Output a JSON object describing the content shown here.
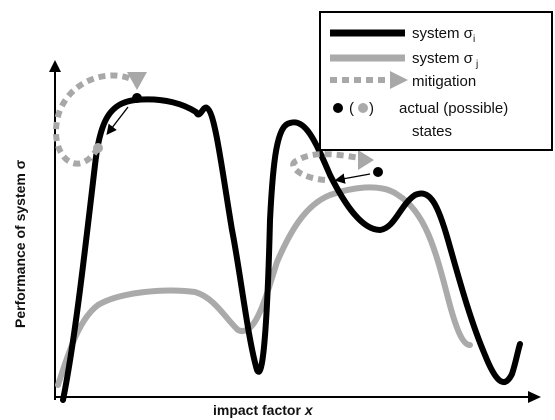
{
  "diagram": {
    "x_axis_label_main": "impact factor ",
    "x_axis_label_var": "x",
    "y_axis_label": "Performance of system σ",
    "legend": {
      "entries": [
        {
          "label": "system σ",
          "sub": "i",
          "style": "black-thick-line"
        },
        {
          "label": "system σ",
          "sub": "j",
          "style": "gray-thick-line"
        },
        {
          "label": "mitigation",
          "style": "gray-dashed-arrow"
        }
      ],
      "states_marker_open": "(",
      "states_marker_close": ")",
      "states_label_line1": "actual (possible)",
      "states_label_line2": "states"
    },
    "colors": {
      "system_i": "#000000",
      "system_j": "#aaaaaa",
      "mitigation": "#a8a8a8",
      "axis": "#000000"
    },
    "icons": [
      "arrowhead-icon",
      "dot-icon"
    ]
  }
}
